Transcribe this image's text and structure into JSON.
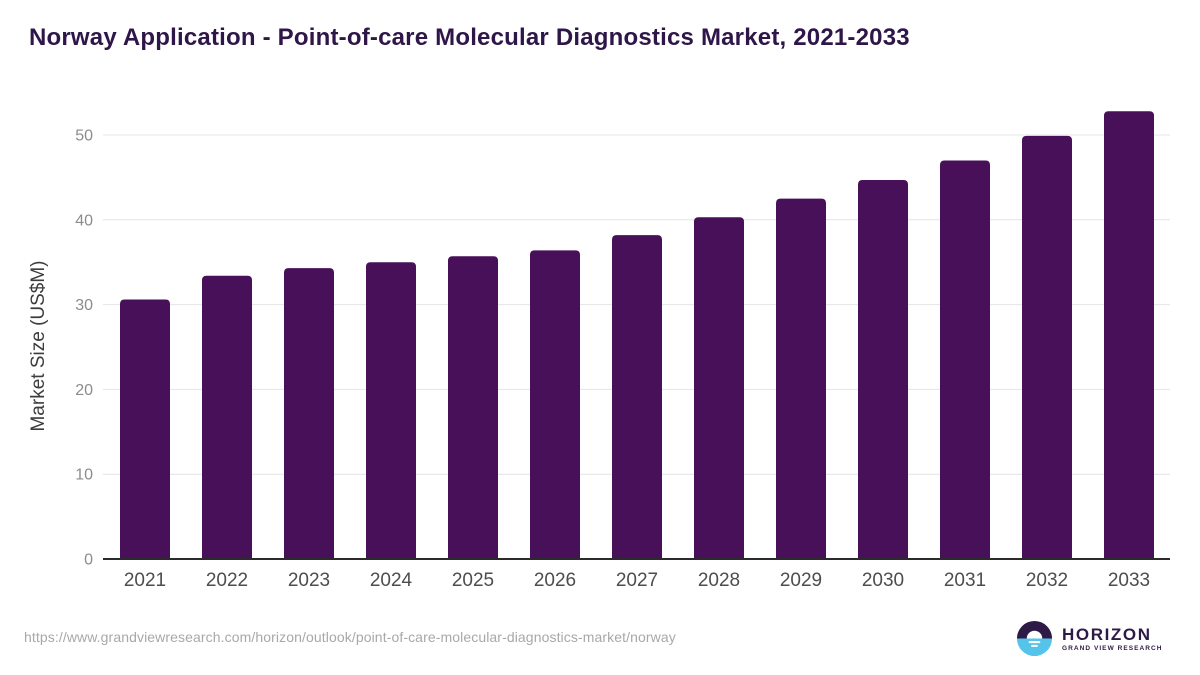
{
  "title": "Norway Application - Point-of-care Molecular Diagnostics Market, 2021-2033",
  "chart_data": {
    "type": "bar",
    "title": "Norway Application - Point-of-care Molecular Diagnostics Market, 2021-2033",
    "categories": [
      "2021",
      "2022",
      "2023",
      "2024",
      "2025",
      "2026",
      "2027",
      "2028",
      "2029",
      "2030",
      "2031",
      "2032",
      "2033"
    ],
    "values": [
      30.6,
      33.4,
      34.3,
      35.0,
      35.7,
      36.4,
      38.2,
      40.3,
      42.5,
      44.7,
      47.0,
      49.9,
      52.8
    ],
    "xlabel": "",
    "ylabel": "Market Size (US$M)",
    "ylim": [
      0,
      55
    ],
    "yticks": [
      0,
      10,
      20,
      30,
      40,
      50
    ],
    "grid": true,
    "legend": false
  },
  "colors": {
    "bar": "#471059",
    "title": "#2f1649",
    "gridline": "#e4e4e4",
    "axis_line": "#2b2b2b",
    "y_tick_label": "#8c8c8c",
    "x_tick_label": "#4d4d4d",
    "y_axis_title": "#3d3d3d",
    "source_url": "#a8a8a8",
    "logo_purple": "#2e1a47",
    "logo_blue": "#55c3ea"
  },
  "footer": {
    "source_url": "https://www.grandviewresearch.com/horizon/outlook/point-of-care-molecular-diagnostics-market/norway",
    "logo": {
      "brand": "HORIZON",
      "tagline": "GRAND VIEW RESEARCH"
    }
  }
}
